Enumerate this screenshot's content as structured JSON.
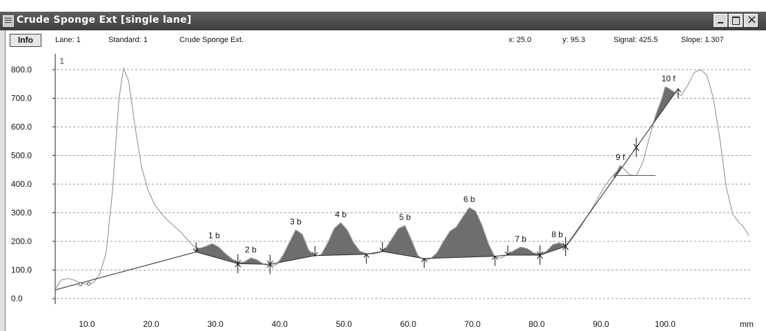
{
  "window": {
    "title": "Crude Sponge Ext [single lane]",
    "icons": {
      "app": "document-icon",
      "minimize": "minimize-icon",
      "maximize": "maximize-icon",
      "close": "close-icon"
    }
  },
  "infobar": {
    "info_button": "Info",
    "lane": "Lane:  1",
    "standard": "Standard:  1",
    "sample": "Crude Sponge Ext.",
    "x": "x:  25.0",
    "y": "y:  95.3",
    "signal": "Signal:   425.5",
    "slope": "Slope:   1.307"
  },
  "colors": {
    "curve": "#9a9a9a",
    "peak_fill": "#6e6e6e",
    "baseline": "#333333",
    "grid": "#9a9a9a"
  },
  "chart_data": {
    "type": "line",
    "lane_marker": "1",
    "xlabel": "mm",
    "ylabel": "",
    "xlim": [
      5,
      110
    ],
    "ylim": [
      -20,
      860
    ],
    "x_ticks": [
      10,
      20,
      30,
      40,
      50,
      60,
      70,
      80,
      90,
      100
    ],
    "x_tick_labels": [
      "10.0",
      "20.0",
      "30.0",
      "40.0",
      "50.0",
      "60.0",
      "70.0",
      "80.0",
      "90.0",
      "100.0"
    ],
    "y_ticks": [
      0,
      100,
      200,
      300,
      400,
      500,
      600,
      700,
      800
    ],
    "y_tick_labels": [
      "0.0",
      "100.0",
      "200.0",
      "300.0",
      "400.0",
      "500.0",
      "600.0",
      "700.0",
      "800.0"
    ],
    "grid": "horizontal dashed",
    "curve": [
      [
        5,
        30
      ],
      [
        6,
        65
      ],
      [
        7,
        70
      ],
      [
        8,
        65
      ],
      [
        9,
        55
      ],
      [
        10,
        50
      ],
      [
        11,
        55
      ],
      [
        12,
        85
      ],
      [
        13,
        160
      ],
      [
        14,
        380
      ],
      [
        15,
        700
      ],
      [
        15.7,
        805
      ],
      [
        16.5,
        760
      ],
      [
        17.5,
        600
      ],
      [
        18.5,
        460
      ],
      [
        19.5,
        380
      ],
      [
        20.5,
        330
      ],
      [
        21.5,
        300
      ],
      [
        22.5,
        275
      ],
      [
        23.5,
        255
      ],
      [
        24.5,
        235
      ],
      [
        25.5,
        210
      ],
      [
        26.5,
        185
      ],
      [
        27.5,
        175
      ],
      [
        28.5,
        182
      ],
      [
        29.5,
        192
      ],
      [
        30.5,
        180
      ],
      [
        31.5,
        158
      ],
      [
        32.5,
        140
      ],
      [
        33.5,
        125
      ],
      [
        34.5,
        128
      ],
      [
        35.5,
        142
      ],
      [
        36.5,
        135
      ],
      [
        37.5,
        120
      ],
      [
        38.5,
        115
      ],
      [
        39.5,
        118
      ],
      [
        40.5,
        150
      ],
      [
        41.5,
        195
      ],
      [
        42.5,
        240
      ],
      [
        43.5,
        225
      ],
      [
        44.5,
        170
      ],
      [
        45.5,
        148
      ],
      [
        46.5,
        155
      ],
      [
        47.5,
        195
      ],
      [
        48.5,
        245
      ],
      [
        49.5,
        265
      ],
      [
        50.5,
        240
      ],
      [
        51.5,
        195
      ],
      [
        52.5,
        165
      ],
      [
        53.5,
        158
      ],
      [
        54.5,
        156
      ],
      [
        55.5,
        160
      ],
      [
        56.5,
        175
      ],
      [
        57.5,
        210
      ],
      [
        58.5,
        245
      ],
      [
        59.5,
        255
      ],
      [
        60.5,
        205
      ],
      [
        61.5,
        150
      ],
      [
        62.5,
        135
      ],
      [
        63.5,
        140
      ],
      [
        64.5,
        160
      ],
      [
        65.5,
        200
      ],
      [
        66.5,
        235
      ],
      [
        67.5,
        250
      ],
      [
        68.5,
        285
      ],
      [
        69.5,
        318
      ],
      [
        70.5,
        305
      ],
      [
        71.5,
        255
      ],
      [
        72.5,
        190
      ],
      [
        73.5,
        145
      ],
      [
        74.5,
        142
      ],
      [
        75.5,
        155
      ],
      [
        76.5,
        168
      ],
      [
        77.5,
        180
      ],
      [
        78.5,
        175
      ],
      [
        79.5,
        160
      ],
      [
        80.5,
        155
      ],
      [
        81.5,
        165
      ],
      [
        82.5,
        188
      ],
      [
        83.5,
        195
      ],
      [
        84.5,
        185
      ],
      [
        85.5,
        208
      ],
      [
        86.5,
        240
      ],
      [
        87.5,
        275
      ],
      [
        88.5,
        310
      ],
      [
        89.5,
        350
      ],
      [
        90.5,
        390
      ],
      [
        91.5,
        420
      ],
      [
        92.5,
        445
      ],
      [
        93,
        465
      ],
      [
        93.5,
        455
      ],
      [
        94.5,
        432
      ],
      [
        95.5,
        430
      ],
      [
        96.5,
        475
      ],
      [
        97.5,
        560
      ],
      [
        98.5,
        640
      ],
      [
        99.5,
        700
      ],
      [
        100,
        740
      ],
      [
        100.5,
        735
      ],
      [
        101.5,
        720
      ],
      [
        102.5,
        710
      ],
      [
        103.5,
        745
      ],
      [
        104.5,
        790
      ],
      [
        105.5,
        800
      ],
      [
        106.5,
        780
      ],
      [
        107.5,
        700
      ],
      [
        108.5,
        560
      ],
      [
        109.5,
        390
      ],
      [
        110.5,
        295
      ],
      [
        111.5,
        265
      ],
      [
        112,
        255
      ],
      [
        112.5,
        240
      ],
      [
        113,
        220
      ]
    ],
    "baseline": [
      [
        5,
        30
      ],
      [
        27,
        163
      ],
      [
        33.5,
        122
      ],
      [
        38.5,
        120
      ],
      [
        45.5,
        150
      ],
      [
        53.5,
        155
      ],
      [
        56,
        165
      ],
      [
        62.5,
        140
      ],
      [
        73.5,
        148
      ],
      [
        75.5,
        152
      ],
      [
        80.5,
        152
      ],
      [
        84.5,
        182
      ],
      [
        102,
        733
      ]
    ],
    "peaks": [
      {
        "label": "1 b",
        "x": 29.8,
        "y": 192,
        "start": 27,
        "end": 33.5
      },
      {
        "label": "2 b",
        "x": 35.5,
        "y": 142,
        "start": 33.5,
        "end": 38.5
      },
      {
        "label": "3 b",
        "x": 42.5,
        "y": 240,
        "start": 38.5,
        "end": 45.5
      },
      {
        "label": "4 b",
        "x": 49.5,
        "y": 265,
        "start": 45.5,
        "end": 53.5
      },
      {
        "label": "5 b",
        "x": 59.5,
        "y": 255,
        "start": 56,
        "end": 62.5
      },
      {
        "label": "6 b",
        "x": 69.5,
        "y": 318,
        "start": 62.5,
        "end": 73.5
      },
      {
        "label": "7 b",
        "x": 77.5,
        "y": 180,
        "start": 75.5,
        "end": 80.5
      },
      {
        "label": "8 b",
        "x": 83.2,
        "y": 195,
        "start": 80.5,
        "end": 84.5
      },
      {
        "label": "9 f",
        "x": 93,
        "y": 465,
        "start": 92,
        "end": 95.5
      },
      {
        "label": "10 f",
        "x": 100.5,
        "y": 740,
        "start": 97.2,
        "end": 102
      }
    ],
    "markers_down": [
      27,
      33.5,
      38.5,
      45.5,
      56,
      75.5,
      80.5,
      84.5,
      95.5
    ],
    "markers_up": [
      33.5,
      38.5,
      53.5,
      62.5,
      73.5,
      80.5,
      84.5,
      95.5,
      102
    ],
    "small_circles": [
      [
        9,
        50
      ],
      [
        10.3,
        52
      ]
    ],
    "crosshair": {
      "x": 95.5,
      "y": 430
    }
  }
}
